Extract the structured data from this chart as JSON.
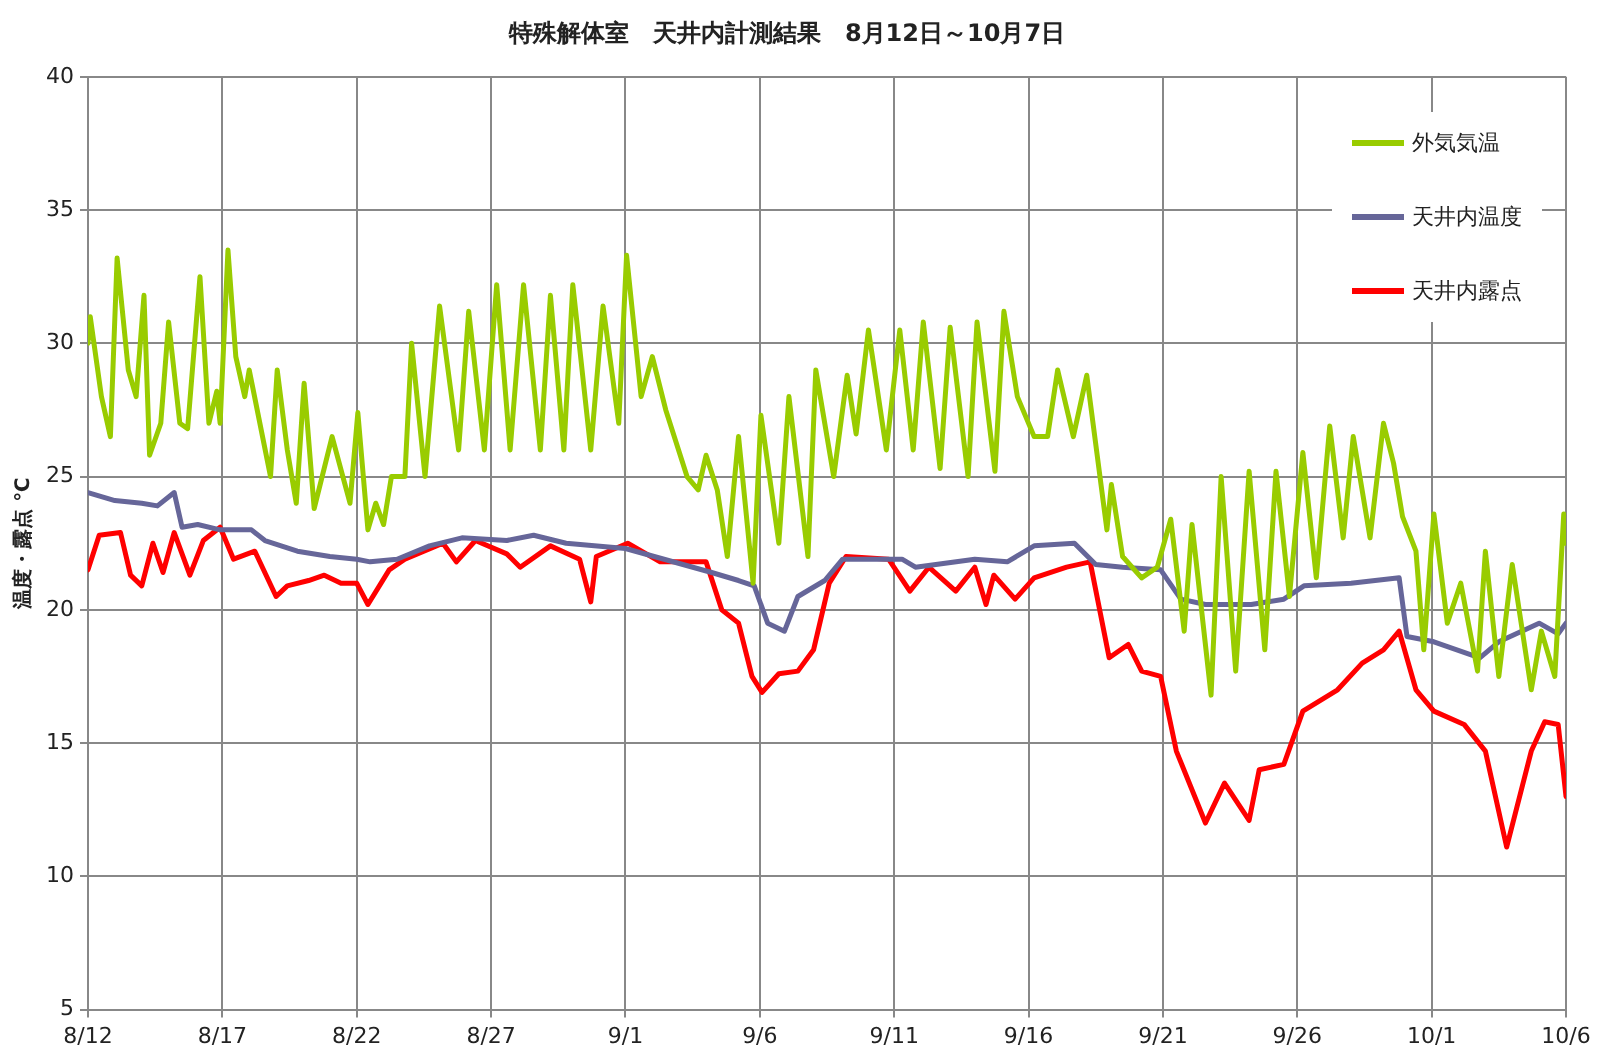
{
  "chart_data": {
    "type": "line",
    "title": "特殊解体室　天井内計測結果　8月12日～10月7日",
    "ylabel": "温度・露点 ℃",
    "xlim": [
      "--08-12",
      "--10-06"
    ],
    "xticks": [
      {
        "value": "--08-12",
        "label": "8/12"
      },
      {
        "value": "--08-17",
        "label": "8/17"
      },
      {
        "value": "--08-22",
        "label": "8/22"
      },
      {
        "value": "--08-27",
        "label": "8/27"
      },
      {
        "value": "--09-01",
        "label": "9/1"
      },
      {
        "value": "--09-06",
        "label": "9/6"
      },
      {
        "value": "--09-11",
        "label": "9/11"
      },
      {
        "value": "--09-16",
        "label": "9/16"
      },
      {
        "value": "--09-21",
        "label": "9/21"
      },
      {
        "value": "--09-26",
        "label": "9/26"
      },
      {
        "value": "--10-01",
        "label": "10/1"
      },
      {
        "value": "--10-06",
        "label": "10/6"
      }
    ],
    "ylim": [
      5,
      40
    ],
    "yticks": [
      5,
      10,
      15,
      20,
      25,
      30,
      35,
      40
    ],
    "grid": true,
    "legend": "top right",
    "marker": "none",
    "line_style": "solid",
    "series": [
      {
        "name": "外気気温",
        "color": "#99cc00",
        "x": [
          "--08-12T00:00",
          "--08-12T02:00",
          "--08-12T12:00",
          "--08-12T20:00",
          "--08-13T02:00",
          "--08-13T12:00",
          "--08-13T19:00",
          "--08-14T02:00",
          "--08-14T07:00",
          "--08-14T17:00",
          "--08-15T00:00",
          "--08-15T10:00",
          "--08-15T17:00",
          "--08-16T04:00",
          "--08-16T12:00",
          "--08-16T19:00",
          "--08-16T22:00",
          "--08-17T05:00",
          "--08-17T12:00",
          "--08-17T20:00",
          "--08-18T00:00",
          "--08-18T19:00",
          "--08-19T01:00",
          "--08-19T10:00",
          "--08-19T18:00",
          "--08-20T01:00",
          "--08-20T10:00",
          "--08-21T02:00",
          "--08-21T18:00",
          "--08-22T01:00",
          "--08-22T10:00",
          "--08-22T17:00",
          "--08-23T00:00",
          "--08-23T07:00",
          "--08-23T19:00",
          "--08-24T01:00",
          "--08-24T13:00",
          "--08-25T02:00",
          "--08-25T19:00",
          "--08-26T04:00",
          "--08-26T18:00",
          "--08-27T05:00",
          "--08-27T17:00",
          "--08-28T05:00",
          "--08-28T20:00",
          "--08-29T05:00",
          "--08-29T17:00",
          "--08-30T01:00",
          "--08-30T17:00",
          "--08-31T04:00",
          "--08-31T18:00",
          "--09-01T01:00",
          "--09-01T14:00",
          "--09-02T00:00",
          "--09-02T12:00",
          "--09-03T07:00",
          "--09-03T17:00",
          "--09-04T00:00",
          "--09-04T10:00",
          "--09-04T19:00",
          "--09-05T05:00",
          "--09-05T18:00",
          "--09-06T01:00",
          "--09-06T17:00",
          "--09-07T02:00",
          "--09-07T19:00",
          "--09-08T02:00",
          "--09-08T18:00",
          "--09-09T06:00",
          "--09-09T14:00",
          "--09-10T01:00",
          "--09-10T17:00",
          "--09-11T05:00",
          "--09-11T17:00",
          "--09-12T02:00",
          "--09-12T17:00",
          "--09-13T02:00",
          "--09-13T18:00",
          "--09-14T02:00",
          "--09-14T18:00",
          "--09-15T02:00",
          "--09-15T14:00",
          "--09-16T05:00",
          "--09-16T17:00",
          "--09-17T02:00",
          "--09-17T16:00",
          "--09-18T04:00",
          "--09-18T22:00",
          "--09-19T02:00",
          "--09-19T12:00",
          "--09-20T05:00",
          "--09-20T19:00",
          "--09-21T07:00",
          "--09-21T19:00",
          "--09-22T02:00",
          "--09-22T19:00",
          "--09-23T04:00",
          "--09-23T17:00",
          "--09-24T05:00",
          "--09-24T19:00",
          "--09-25T05:00",
          "--09-25T17:00",
          "--09-26T05:00",
          "--09-26T17:00",
          "--09-27T05:00",
          "--09-27T17:00",
          "--09-28T02:00",
          "--09-28T17:00",
          "--09-29T05:00",
          "--09-29T14:00",
          "--09-29T22:00",
          "--09-30T10:00",
          "--09-30T17:00",
          "--10-01T02:00",
          "--10-01T14:00",
          "--10-02T02:00",
          "--10-02T17:00",
          "--10-03T00:00",
          "--10-03T12:00",
          "--10-04T00:00",
          "--10-04T17:00",
          "--10-05T02:00",
          "--10-05T14:00",
          "--10-05T22:00",
          "--10-06T00:00"
        ],
        "values": [
          30,
          31,
          28,
          26.5,
          33.2,
          29,
          28,
          31.8,
          25.8,
          27,
          30.8,
          27,
          26.8,
          32.5,
          27,
          28.2,
          27,
          33.5,
          29.5,
          28,
          29,
          25,
          29,
          26,
          24,
          28.5,
          23.8,
          26.5,
          24,
          27.4,
          23,
          24,
          23.2,
          25,
          25,
          30,
          25,
          31.4,
          26,
          31.2,
          26,
          32.2,
          26,
          32.2,
          26,
          31.8,
          26,
          32.2,
          26,
          31.4,
          27,
          33.3,
          28,
          29.5,
          27.5,
          25,
          24.5,
          25.8,
          24.5,
          22,
          26.5,
          21,
          27.3,
          22.5,
          28,
          22,
          29,
          25,
          28.8,
          26.6,
          30.5,
          26,
          30.5,
          26,
          30.8,
          25.3,
          30.6,
          25,
          30.8,
          25.2,
          31.2,
          28,
          26.5,
          26.5,
          29,
          26.5,
          28.8,
          23,
          24.7,
          22,
          21.2,
          21.6,
          23.4,
          19.2,
          23.2,
          16.8,
          25,
          17.7,
          25.2,
          18.5,
          25.2,
          20.5,
          25.9,
          21.2,
          26.9,
          22.7,
          26.5,
          22.7,
          27,
          25.5,
          23.5,
          22.2,
          18.5,
          23.6,
          19.5,
          21,
          17.7,
          22.2,
          17.5,
          21.7,
          17,
          19.2,
          17.5,
          23.6,
          22.5
        ]
      },
      {
        "name": "天井内温度",
        "color": "#666699",
        "x": [
          "--08-12T00:00",
          "--08-13T00:00",
          "--08-14T00:00",
          "--08-14T14:00",
          "--08-15T05:00",
          "--08-15T12:00",
          "--08-16T02:00",
          "--08-16T22:00",
          "--08-18T02:00",
          "--08-18T14:00",
          "--08-19T19:00",
          "--08-21T00:00",
          "--08-22T00:00",
          "--08-22T12:00",
          "--08-23T12:00",
          "--08-24T17:00",
          "--08-25T22:00",
          "--08-27T14:00",
          "--08-28T14:00",
          "--08-29T19:00",
          "--09-01T00:00",
          "--09-04T05:00",
          "--09-05T05:00",
          "--09-05T19:00",
          "--09-06T07:00",
          "--09-06T22:00",
          "--09-07T10:00",
          "--09-08T10:00",
          "--09-09T02:00",
          "--09-11T07:00",
          "--09-11T19:00",
          "--09-14T00:00",
          "--09-15T05:00",
          "--09-16T05:00",
          "--09-17T17:00",
          "--09-18T12:00",
          "--09-19T12:00",
          "--09-20T22:00",
          "--09-21T16:00",
          "--09-22T14:00",
          "--09-24T07:00",
          "--09-25T12:00",
          "--09-26T06:00",
          "--09-28T00:00",
          "--09-29T19:00",
          "--09-30T02:00",
          "--10-01T02:00",
          "--10-02T19:00",
          "--10-03T12:00",
          "--10-05T00:00",
          "--10-05T17:00",
          "--10-06T00:00"
        ],
        "values": [
          24.4,
          24.1,
          24,
          23.9,
          24.4,
          23.1,
          23.2,
          23,
          23,
          22.6,
          22.2,
          22,
          21.9,
          21.8,
          21.9,
          22.4,
          22.7,
          22.6,
          22.8,
          22.5,
          22.3,
          21.4,
          21.1,
          20.9,
          19.5,
          19.2,
          20.5,
          21.1,
          21.9,
          21.9,
          21.6,
          21.9,
          21.8,
          22.4,
          22.5,
          21.7,
          21.6,
          21.5,
          20.4,
          20.2,
          20.2,
          20.4,
          20.9,
          21,
          21.2,
          19,
          18.8,
          18.2,
          18.8,
          19.5,
          19.1,
          19.5
        ]
      },
      {
        "name": "天井内露点",
        "color": "#ff0000",
        "x": [
          "--08-12T00:00",
          "--08-12T10:00",
          "--08-13T05:00",
          "--08-13T14:00",
          "--08-14T00:00",
          "--08-14T10:00",
          "--08-14T19:00",
          "--08-15T05:00",
          "--08-15T19:00",
          "--08-16T07:00",
          "--08-16T22:00",
          "--08-17T10:00",
          "--08-18T05:00",
          "--08-19T00:00",
          "--08-19T10:00",
          "--08-20T05:00",
          "--08-20T19:00",
          "--08-21T10:00",
          "--08-22T00:00",
          "--08-22T10:00",
          "--08-23T05:00",
          "--08-23T19:00",
          "--08-25T05:00",
          "--08-25T17:00",
          "--08-26T10:00",
          "--08-27T14:00",
          "--08-28T02:00",
          "--08-29T05:00",
          "--08-30T07:00",
          "--08-30T17:00",
          "--08-30T22:00",
          "--09-01T02:00",
          "--09-02T07:00",
          "--09-04T00:00",
          "--09-04T14:00",
          "--09-05T05:00",
          "--09-05T17:00",
          "--09-06T02:00",
          "--09-06T17:00",
          "--09-07T10:00",
          "--09-08T00:00",
          "--09-08T14:00",
          "--09-09T05:00",
          "--09-10T19:00",
          "--09-11T14:00",
          "--09-12T07:00",
          "--09-13T07:00",
          "--09-14T00:00",
          "--09-14T10:00",
          "--09-14T17:00",
          "--09-15T12:00",
          "--09-16T05:00",
          "--09-17T10:00",
          "--09-18T07:00",
          "--09-19T00:00",
          "--09-19T17:00",
          "--09-20T05:00",
          "--09-20T22:00",
          "--09-21T12:00",
          "--09-22T14:00",
          "--09-23T07:00",
          "--09-24T05:00",
          "--09-24T14:00",
          "--09-25T12:00",
          "--09-26T05:00",
          "--09-27T12:00",
          "--09-28T10:00",
          "--09-29T05:00",
          "--09-29T19:00",
          "--09-30T10:00",
          "--10-01T02:00",
          "--10-02T05:00",
          "--10-03T00:00",
          "--10-03T19:00",
          "--10-04T17:00",
          "--10-05T05:00",
          "--10-05T17:00",
          "--10-06T00:00"
        ],
        "values": [
          21.5,
          22.8,
          22.9,
          21.3,
          20.9,
          22.5,
          21.4,
          22.9,
          21.3,
          22.6,
          23.1,
          21.9,
          22.2,
          20.5,
          20.9,
          21.1,
          21.3,
          21,
          21,
          20.2,
          21.5,
          21.9,
          22.5,
          21.8,
          22.6,
          22.1,
          21.6,
          22.4,
          21.9,
          20.3,
          22,
          22.5,
          21.8,
          21.8,
          20,
          19.5,
          17.5,
          16.9,
          17.6,
          17.7,
          18.5,
          21,
          22,
          21.9,
          20.7,
          21.6,
          20.7,
          21.6,
          20.2,
          21.3,
          20.4,
          21.2,
          21.6,
          21.8,
          18.2,
          18.7,
          17.7,
          17.5,
          14.7,
          12,
          13.5,
          12.1,
          14,
          14.2,
          16.2,
          17,
          18,
          18.5,
          19.2,
          17,
          16.2,
          15.7,
          14.7,
          11.1,
          14.7,
          15.8,
          15.7,
          13
        ]
      }
    ]
  }
}
